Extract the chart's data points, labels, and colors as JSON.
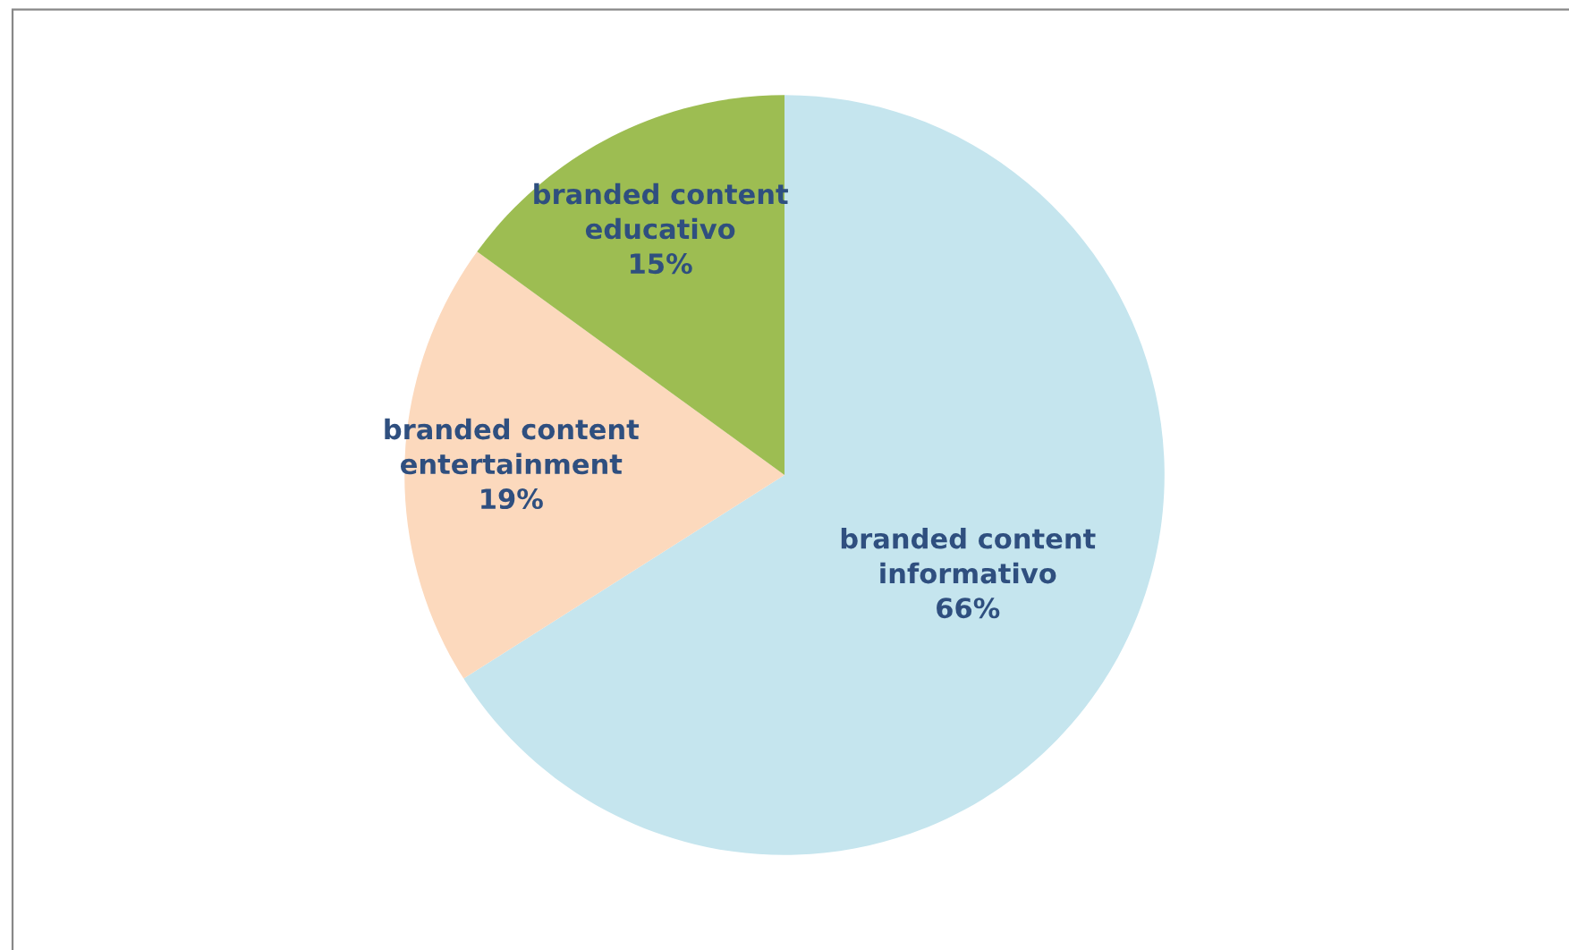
{
  "chart_data": {
    "type": "pie",
    "categories": [
      "branded content informativo",
      "branded content entertainment",
      "branded content educativo"
    ],
    "values": [
      66,
      19,
      15
    ],
    "value_labels": [
      "66%",
      "19%",
      "15%"
    ],
    "colors": [
      "#c5e5ee",
      "#fcd9bd",
      "#9dbd52"
    ]
  }
}
